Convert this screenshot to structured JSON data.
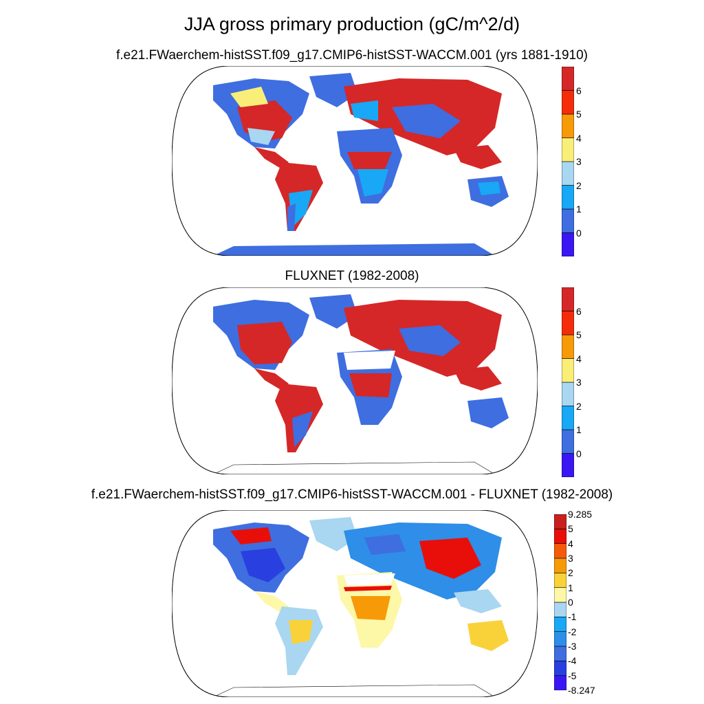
{
  "title": "JJA gross primary production (gC/m^2/d)",
  "panels": [
    {
      "subtitle": "f.e21.FWaerchem-histSST.f09_g17.CMIP6-histSST-WACCM.001 (yrs 1881-1910)",
      "colorbar": {
        "colors": [
          "#3a17f2",
          "#3e6ee0",
          "#18a8f5",
          "#a9d6f0",
          "#f9ee78",
          "#f79a07",
          "#f42c0a",
          "#d52727"
        ],
        "labels": [
          "0",
          "1",
          "2",
          "3",
          "4",
          "5",
          "6"
        ]
      }
    },
    {
      "subtitle": "FLUXNET (1982-2008)",
      "colorbar": {
        "colors": [
          "#3a17f2",
          "#3e6ee0",
          "#18a8f5",
          "#a9d6f0",
          "#f9ee78",
          "#f79a07",
          "#f42c0a",
          "#d52727"
        ],
        "labels": [
          "0",
          "1",
          "2",
          "3",
          "4",
          "5",
          "6"
        ]
      }
    },
    {
      "subtitle": "f.e21.FWaerchem-histSST.f09_g17.CMIP6-histSST-WACCM.001 - FLUXNET (1982-2008)",
      "colorbar": {
        "colors": [
          "#3a17f2",
          "#2a3fe0",
          "#3e6ee0",
          "#2e8ee8",
          "#18a8f5",
          "#a9d6f0",
          "#fdf7a8",
          "#f9d23a",
          "#f79a07",
          "#f45a0a",
          "#e80f0a",
          "#c82020"
        ],
        "labels": [
          "9.285",
          "5",
          "4",
          "3",
          "2",
          "1",
          "0",
          "-1",
          "-2",
          "-3",
          "-4",
          "-5",
          "-8.247"
        ]
      }
    }
  ]
}
